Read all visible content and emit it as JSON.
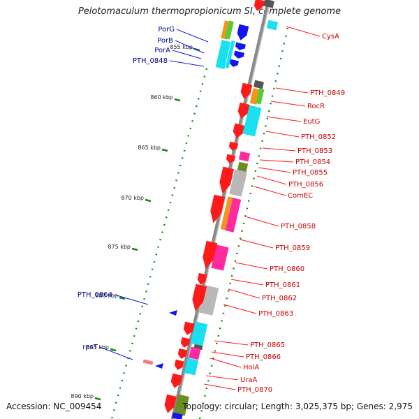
{
  "map": {
    "title": "Pelotomaculum thermopropionicum SI, complete genome",
    "accession": "Accession: NC_009454",
    "summary": "Topology: circular; Length: 3,025,375 bp; Genes: 2,975"
  },
  "colors": {
    "red": "#ff1a1a",
    "orange": "#f0961e",
    "green": "#55cc33",
    "blue": "#1414ee",
    "cyan": "#1ae0f0",
    "magenta": "#ff2aa0",
    "gray": "#b8b8b8",
    "darkgray": "#555555",
    "olive": "#6b8e23",
    "pink": "#f08080",
    "label_red": "#cc0000",
    "label_blue": "#000099",
    "tick": "#118811"
  },
  "scale": {
    "ticks": [
      "855 kbp",
      "860 kbp",
      "865 kbp",
      "870 kbp",
      "875 kbp",
      "880 kbp",
      "885 kbp",
      "890 kbp"
    ]
  },
  "labels": {
    "left": [
      "PorG",
      "PorB",
      "PorA",
      "PTH_0848",
      "PTH_0864",
      "rpsT"
    ],
    "right": [
      "CysA",
      "PTH_0849",
      "RocR",
      "EutG",
      "PTH_0852",
      "PTH_0853",
      "PTH_0854",
      "PTH_0855",
      "PTH_0856",
      "ComEC",
      "PTH_0858",
      "PTH_0859",
      "PTH_0860",
      "PTH_0861",
      "PTH_0862",
      "PTH_0863",
      "PTH_0865",
      "PTH_0866",
      "HolA",
      "UraA",
      "PTH_0870"
    ]
  }
}
